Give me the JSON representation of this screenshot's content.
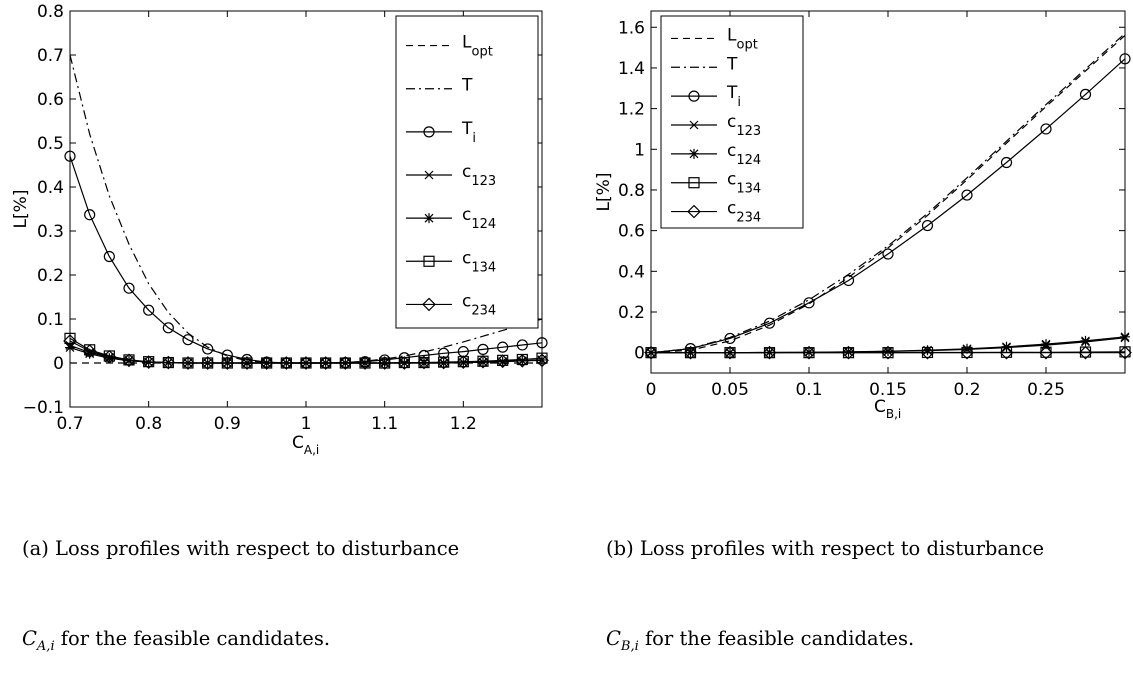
{
  "chart_data": [
    {
      "type": "line",
      "xlabel": "C",
      "xlabel_sub": "A,i",
      "ylabel": "L[%]",
      "xlim": [
        0.7,
        1.3
      ],
      "ylim": [
        -0.1,
        0.8
      ],
      "xticks": [
        0.7,
        0.8,
        0.9,
        1,
        1.1,
        1.2
      ],
      "xtick_labels": [
        "0.7",
        "0.8",
        "0.9",
        "1",
        "1.1",
        "1.2"
      ],
      "yticks": [
        -0.1,
        0,
        0.1,
        0.2,
        0.3,
        0.4,
        0.5,
        0.6,
        0.7,
        0.8
      ],
      "ytick_labels": [
        "−0.1",
        "0",
        "0.1",
        "0.2",
        "0.3",
        "0.4",
        "0.5",
        "0.6",
        "0.7",
        "0.8"
      ],
      "legend_position": "top-right",
      "x": [
        0.7,
        0.725,
        0.75,
        0.775,
        0.8,
        0.825,
        0.85,
        0.875,
        0.9,
        0.925,
        0.95,
        0.975,
        1.0,
        1.025,
        1.05,
        1.075,
        1.1,
        1.125,
        1.15,
        1.175,
        1.2,
        1.225,
        1.25,
        1.275,
        1.3
      ],
      "series": [
        {
          "name": "L",
          "sub": "opt",
          "style": "dashed",
          "marker": "none",
          "values": [
            0,
            0,
            0,
            0,
            0,
            0,
            0,
            0,
            0,
            0,
            0,
            0,
            0,
            0,
            0,
            0,
            0,
            0,
            0,
            0,
            0,
            0,
            0,
            0,
            0
          ]
        },
        {
          "name": "T",
          "sub": "",
          "style": "dashdot",
          "marker": "none",
          "values": [
            0.7,
            0.52,
            0.38,
            0.27,
            0.18,
            0.115,
            0.068,
            0.036,
            0.016,
            0.005,
            0.001,
            0,
            0,
            0,
            0.001,
            0.004,
            0.009,
            0.016,
            0.025,
            0.036,
            0.048,
            0.061,
            0.074,
            0.087,
            0.1
          ]
        },
        {
          "name": "T",
          "sub": "i",
          "style": "solid",
          "marker": "circle",
          "values": [
            0.47,
            0.337,
            0.242,
            0.17,
            0.12,
            0.08,
            0.053,
            0.032,
            0.018,
            0.008,
            0.002,
            0,
            0,
            0,
            0.001,
            0.003,
            0.007,
            0.012,
            0.017,
            0.022,
            0.026,
            0.031,
            0.036,
            0.041,
            0.046
          ]
        },
        {
          "name": "c",
          "sub": "123",
          "style": "solid",
          "marker": "x",
          "values": [
            0.04,
            0.024,
            0.013,
            0.006,
            0.002,
            0.001,
            0,
            0,
            0,
            0,
            0,
            0,
            0,
            0,
            0,
            0,
            0,
            0,
            0,
            0,
            0.001,
            0.002,
            0.003,
            0.005,
            0.007
          ]
        },
        {
          "name": "c",
          "sub": "124",
          "style": "solid",
          "marker": "star",
          "values": [
            0.035,
            0.021,
            0.011,
            0.005,
            0.002,
            0.001,
            0,
            0,
            0,
            0,
            0,
            0,
            0,
            0,
            0,
            0,
            0,
            0,
            0,
            0,
            0.001,
            0.002,
            0.003,
            0.005,
            0.007
          ]
        },
        {
          "name": "c",
          "sub": "134",
          "style": "solid",
          "marker": "square",
          "values": [
            0.056,
            0.03,
            0.016,
            0.007,
            0.003,
            0.001,
            0,
            0,
            0,
            0,
            0,
            0,
            0,
            0,
            0,
            0,
            0,
            0.001,
            0.001,
            0.002,
            0.003,
            0.004,
            0.006,
            0.008,
            0.011
          ]
        },
        {
          "name": "c",
          "sub": "234",
          "style": "solid",
          "marker": "diamond",
          "values": [
            0.05,
            0.027,
            0.014,
            0.006,
            0.002,
            0.001,
            0,
            0,
            0,
            0,
            0,
            0,
            0,
            0,
            0,
            0,
            0,
            0,
            0.001,
            0.001,
            0.002,
            0.003,
            0.004,
            0.005,
            0.006
          ]
        }
      ]
    },
    {
      "type": "line",
      "xlabel": "C",
      "xlabel_sub": "B,i",
      "ylabel": "L[%]",
      "xlim": [
        0,
        0.3
      ],
      "ylim": [
        -0.1,
        1.68
      ],
      "xticks": [
        0,
        0.05,
        0.1,
        0.15,
        0.2,
        0.25
      ],
      "xtick_labels": [
        "0",
        "0.05",
        "0.1",
        "0.15",
        "0.2",
        "0.25"
      ],
      "yticks": [
        0,
        0.2,
        0.4,
        0.6,
        0.8,
        1,
        1.2,
        1.4,
        1.6
      ],
      "ytick_labels": [
        "0",
        "0.2",
        "0.4",
        "0.6",
        "0.8",
        "1",
        "1.2",
        "1.4",
        "1.6"
      ],
      "legend_position": "top-left",
      "x": [
        0,
        0.025,
        0.05,
        0.075,
        0.1,
        0.125,
        0.15,
        0.175,
        0.2,
        0.225,
        0.25,
        0.275,
        0.3
      ],
      "series": [
        {
          "name": "L",
          "sub": "opt",
          "style": "dashed",
          "marker": "none",
          "values": [
            0,
            0.012,
            0.058,
            0.135,
            0.24,
            0.37,
            0.515,
            0.675,
            0.85,
            1.03,
            1.21,
            1.385,
            1.56
          ]
        },
        {
          "name": "T",
          "sub": "",
          "style": "dashdot",
          "marker": "none",
          "values": [
            0,
            0.02,
            0.075,
            0.155,
            0.26,
            0.385,
            0.525,
            0.685,
            0.86,
            1.04,
            1.22,
            1.395,
            1.57
          ]
        },
        {
          "name": "T",
          "sub": "i",
          "style": "solid",
          "marker": "circle",
          "values": [
            0,
            0.02,
            0.07,
            0.145,
            0.245,
            0.355,
            0.485,
            0.625,
            0.775,
            0.935,
            1.1,
            1.27,
            1.445
          ]
        },
        {
          "name": "c",
          "sub": "123",
          "style": "solid",
          "marker": "x",
          "values": [
            0,
            0,
            0,
            0.001,
            0.002,
            0.003,
            0.006,
            0.01,
            0.016,
            0.025,
            0.037,
            0.053,
            0.073
          ]
        },
        {
          "name": "c",
          "sub": "124",
          "style": "solid",
          "marker": "star",
          "values": [
            0,
            0,
            0,
            0.001,
            0.002,
            0.004,
            0.007,
            0.012,
            0.019,
            0.029,
            0.042,
            0.058,
            0.078
          ]
        },
        {
          "name": "c",
          "sub": "134",
          "style": "solid",
          "marker": "square",
          "values": [
            0,
            0,
            0,
            0,
            0,
            0,
            0,
            0.001,
            0.001,
            0.002,
            0.002,
            0.003,
            0.004
          ]
        },
        {
          "name": "c",
          "sub": "234",
          "style": "solid",
          "marker": "diamond",
          "values": [
            0,
            0,
            0,
            0,
            0,
            0,
            0,
            0,
            0,
            0,
            0,
            0,
            0
          ]
        }
      ]
    }
  ],
  "captions": [
    {
      "line1": "(a) Loss profiles with respect to disturbance",
      "var": "C",
      "var_sub": "A,i",
      "line2_rest": " for the feasible candidates."
    },
    {
      "line1": "(b) Loss profiles with respect to disturbance",
      "var": "C",
      "var_sub": "B,i",
      "line2_rest": " for the feasible candidates."
    }
  ]
}
